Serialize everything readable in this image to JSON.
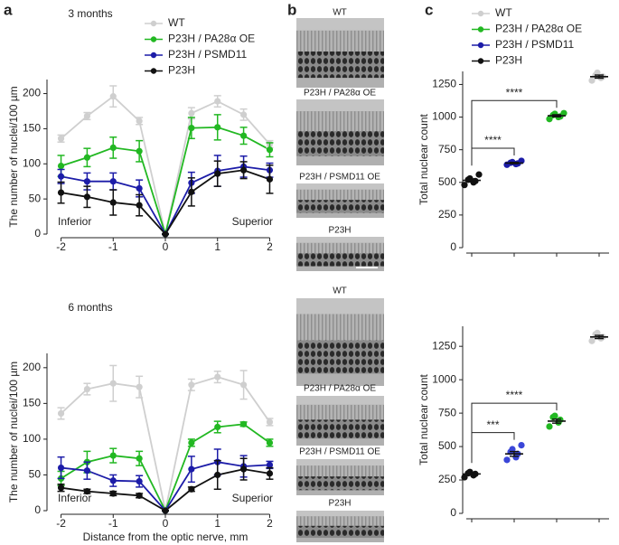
{
  "panel_labels": [
    "a",
    "b",
    "c"
  ],
  "images": {
    "top": [
      "WT",
      "P23H / PA28α OE",
      "P23H / PSMD11 OE",
      "P23H"
    ],
    "bottom": [
      "WT",
      "P23H / PA28α OE",
      "P23H / PSMD11 OE",
      "P23H"
    ]
  },
  "chart_data": [
    {
      "type": "line",
      "title": "3 months",
      "ylabel": "The number of nuclei/100 µm",
      "annotations": [
        "Inferior",
        "Superior"
      ],
      "legend": true,
      "x": [
        -2,
        -1.5,
        -1,
        -0.5,
        0,
        0.5,
        1,
        1.5,
        2
      ],
      "xlim": [
        -2.2,
        2.2
      ],
      "xticks": [
        -2,
        -1,
        0,
        1,
        2
      ],
      "ylim": [
        0,
        220
      ],
      "yticks": [
        0,
        50,
        100,
        150,
        200
      ],
      "series": [
        {
          "name": "WT",
          "color": "#cfcfcf",
          "values": [
            136,
            168,
            196,
            161,
            0,
            172,
            189,
            170,
            128
          ],
          "errors": [
            5,
            5,
            15,
            5,
            0,
            8,
            8,
            8,
            5
          ]
        },
        {
          "name": "P23H / PA28α OE",
          "color": "#22b822",
          "values": [
            97,
            109,
            123,
            118,
            0,
            151,
            152,
            140,
            120
          ],
          "errors": [
            15,
            13,
            15,
            15,
            0,
            15,
            18,
            12,
            10
          ]
        },
        {
          "name": "P23H / PSMD11",
          "color": "#1c1ca8",
          "values": [
            82,
            75,
            75,
            65,
            0,
            73,
            90,
            96,
            91
          ],
          "errors": [
            10,
            12,
            12,
            12,
            0,
            15,
            22,
            15,
            10
          ]
        },
        {
          "name": "P23H",
          "color": "#111111",
          "values": [
            59,
            53,
            45,
            41,
            0,
            60,
            86,
            91,
            78
          ],
          "errors": [
            15,
            15,
            18,
            15,
            0,
            20,
            18,
            12,
            20
          ]
        }
      ]
    },
    {
      "type": "line",
      "title": "6 months",
      "ylabel": "The number of nuclei/100 µm",
      "xlabel": "Distance from the optic nerve, mm",
      "annotations": [
        "Inferior",
        "Superior"
      ],
      "legend": false,
      "x": [
        -2,
        -1.5,
        -1,
        -0.5,
        0,
        0.5,
        1,
        1.5,
        2
      ],
      "xlim": [
        -2.2,
        2.2
      ],
      "xticks": [
        -2,
        -1,
        0,
        1,
        2
      ],
      "ylim": [
        0,
        220
      ],
      "yticks": [
        0,
        50,
        100,
        150,
        200
      ],
      "series": [
        {
          "name": "WT",
          "color": "#cfcfcf",
          "values": [
            136,
            170,
            178,
            173,
            0,
            176,
            187,
            176,
            124
          ],
          "errors": [
            8,
            8,
            25,
            15,
            0,
            8,
            8,
            20,
            5
          ]
        },
        {
          "name": "P23H / PA28α OE",
          "color": "#22b822",
          "values": [
            45,
            68,
            77,
            73,
            0,
            95,
            117,
            121,
            95
          ],
          "errors": [
            10,
            15,
            10,
            10,
            0,
            5,
            8,
            3,
            5
          ]
        },
        {
          "name": "P23H / PSMD11",
          "color": "#1c1ca8",
          "values": [
            60,
            56,
            42,
            41,
            0,
            58,
            68,
            62,
            64
          ],
          "errors": [
            15,
            12,
            8,
            8,
            0,
            18,
            18,
            15,
            5
          ]
        },
        {
          "name": "P23H",
          "color": "#111111",
          "values": [
            32,
            27,
            24,
            21,
            0,
            30,
            50,
            58,
            52
          ],
          "errors": [
            5,
            3,
            3,
            3,
            0,
            3,
            20,
            15,
            8
          ]
        }
      ]
    },
    {
      "type": "dot",
      "ylabel": "Total nuclear count",
      "legend": true,
      "ylim": [
        0,
        1350
      ],
      "yticks": [
        0,
        250,
        500,
        750,
        1000,
        1250
      ],
      "series": [
        {
          "name": "WT",
          "color": "#cfcfcf",
          "values": [
            1280,
            1300,
            1310,
            1320,
            1340
          ],
          "mean": 1310,
          "sem": 12
        },
        {
          "name": "P23H / PA28α OE",
          "color": "#22b822",
          "values": [
            985,
            1000,
            1005,
            1015,
            1025,
            1030
          ],
          "mean": 1010,
          "sem": 8
        },
        {
          "name": "P23H / PSMD11",
          "color": "#1c1ca8",
          "values": [
            635,
            640,
            645,
            650,
            655,
            665
          ],
          "mean": 648,
          "sem": 5
        },
        {
          "name": "P23H",
          "color": "#111111",
          "values": [
            480,
            500,
            510,
            520,
            530,
            560
          ],
          "mean": 515,
          "sem": 12
        }
      ],
      "comparisons": [
        {
          "label": "****",
          "groups": [
            "P23H",
            "P23H / PSMD11"
          ]
        },
        {
          "label": "****",
          "groups": [
            "P23H",
            "P23H / PA28α OE"
          ]
        }
      ]
    },
    {
      "type": "dot",
      "ylabel": "Total nuclear count",
      "legend": false,
      "ylim": [
        0,
        1400
      ],
      "yticks": [
        0,
        250,
        500,
        750,
        1000,
        1250
      ],
      "series": [
        {
          "name": "WT",
          "color": "#cfcfcf",
          "values": [
            1290,
            1310,
            1320,
            1340,
            1350
          ],
          "mean": 1320,
          "sem": 12
        },
        {
          "name": "P23H / PA28α OE",
          "color": "#22b822",
          "values": [
            650,
            680,
            700,
            720,
            730
          ],
          "mean": 690,
          "sem": 15
        },
        {
          "name": "P23H / PSMD11",
          "color": "#3a46d8",
          "values": [
            400,
            420,
            445,
            460,
            480,
            510
          ],
          "mean": 445,
          "sem": 18
        },
        {
          "name": "P23H",
          "color": "#111111",
          "values": [
            270,
            285,
            295,
            300,
            310
          ],
          "mean": 295,
          "sem": 8
        }
      ],
      "comparisons": [
        {
          "label": "***",
          "groups": [
            "P23H",
            "P23H / PSMD11"
          ]
        },
        {
          "label": "****",
          "groups": [
            "P23H",
            "P23H / PA28α OE"
          ]
        }
      ]
    }
  ]
}
